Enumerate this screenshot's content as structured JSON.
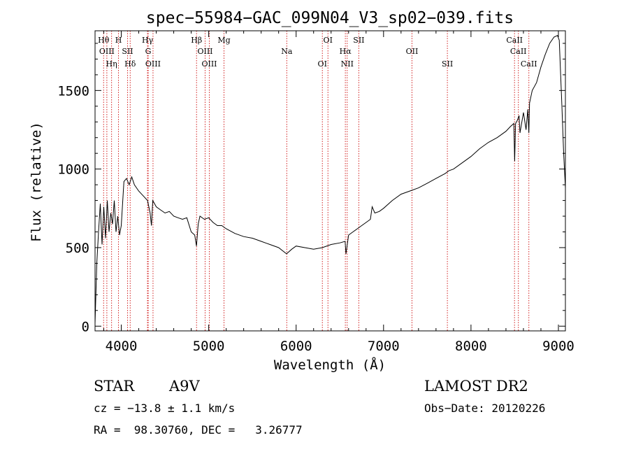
{
  "chart_data": {
    "type": "line",
    "title": "spec−55984−GAC_099N04_V3_sp02−039.fits",
    "xlabel": "Wavelength (Å)",
    "ylabel": "Flux (relative)",
    "xlim": [
      3700,
      9080
    ],
    "ylim": [
      -30,
      1880
    ],
    "xticks": [
      4000,
      5000,
      6000,
      7000,
      8000,
      9000
    ],
    "yticks": [
      0,
      500,
      1000,
      1500
    ],
    "grid": false,
    "series": [
      {
        "color": "#000000",
        "x": [
          3700,
          3720,
          3740,
          3760,
          3780,
          3800,
          3820,
          3840,
          3860,
          3880,
          3900,
          3920,
          3940,
          3960,
          3980,
          4000,
          4030,
          4060,
          4090,
          4120,
          4150,
          4200,
          4250,
          4300,
          4330,
          4345,
          4360,
          4400,
          4450,
          4500,
          4550,
          4600,
          4650,
          4700,
          4750,
          4800,
          4840,
          4860,
          4880,
          4900,
          4950,
          5000,
          5050,
          5100,
          5150,
          5200,
          5300,
          5400,
          5500,
          5600,
          5700,
          5800,
          5890,
          5950,
          6000,
          6100,
          6200,
          6300,
          6400,
          6500,
          6560,
          6570,
          6600,
          6650,
          6700,
          6750,
          6800,
          6850,
          6870,
          6900,
          6950,
          7000,
          7100,
          7200,
          7300,
          7400,
          7500,
          7600,
          7700,
          7750,
          7800,
          7900,
          8000,
          8100,
          8200,
          8300,
          8400,
          8450,
          8490,
          8500,
          8510,
          8530,
          8550,
          8560,
          8600,
          8630,
          8650,
          8662,
          8670,
          8700,
          8750,
          8800,
          8850,
          8900,
          8950,
          8990,
          9010,
          9040,
          9060,
          9080
        ],
        "values": [
          20,
          400,
          600,
          780,
          520,
          760,
          560,
          800,
          600,
          720,
          650,
          800,
          600,
          700,
          580,
          640,
          920,
          940,
          900,
          950,
          900,
          860,
          830,
          800,
          720,
          640,
          800,
          760,
          740,
          720,
          730,
          700,
          690,
          680,
          690,
          600,
          580,
          510,
          650,
          700,
          680,
          690,
          660,
          640,
          640,
          620,
          590,
          570,
          560,
          540,
          520,
          500,
          460,
          490,
          510,
          500,
          490,
          500,
          520,
          530,
          540,
          460,
          580,
          600,
          620,
          640,
          660,
          680,
          760,
          720,
          730,
          750,
          800,
          840,
          860,
          880,
          910,
          940,
          970,
          990,
          1000,
          1040,
          1080,
          1130,
          1170,
          1200,
          1240,
          1270,
          1290,
          1050,
          1290,
          1310,
          1340,
          1230,
          1360,
          1250,
          1380,
          1230,
          1420,
          1500,
          1550,
          1650,
          1730,
          1800,
          1840,
          1850,
          1820,
          1400,
          1100,
          880
        ]
      }
    ],
    "lines": [
      {
        "label": "Hθ",
        "x": 3798,
        "color": "#d22020"
      },
      {
        "label": "OIII",
        "x": 3835,
        "color": "#d22020"
      },
      {
        "label": "Hη",
        "x": 3889,
        "color": "#d22020"
      },
      {
        "label": "H",
        "x": 3968,
        "color": "#d22020"
      },
      {
        "label": "SII",
        "x": 4072,
        "color": "#d22020"
      },
      {
        "label": "Hδ",
        "x": 4102,
        "color": "#d22020"
      },
      {
        "label": "Hγ",
        "x": 4300,
        "color": "#d22020"
      },
      {
        "label": "G",
        "x": 4308,
        "color": "#d22020"
      },
      {
        "label": "OIII",
        "x": 4363,
        "color": "#d22020"
      },
      {
        "label": "Hβ",
        "x": 4861,
        "color": "#d22020"
      },
      {
        "label": "OIII",
        "x": 4959,
        "color": "#d22020"
      },
      {
        "label": "OIII",
        "x": 5007,
        "color": "#d22020"
      },
      {
        "label": "Mg",
        "x": 5175,
        "color": "#d22020"
      },
      {
        "label": "Na",
        "x": 5893,
        "color": "#d22020"
      },
      {
        "label": "OI",
        "x": 6300,
        "color": "#d22020"
      },
      {
        "label": "OI",
        "x": 6364,
        "color": "#d22020"
      },
      {
        "label": "Hα",
        "x": 6563,
        "color": "#d22020"
      },
      {
        "label": "NII",
        "x": 6584,
        "color": "#d22020"
      },
      {
        "label": "SII",
        "x": 6717,
        "color": "#d22020"
      },
      {
        "label": "OII",
        "x": 7325,
        "color": "#d22020"
      },
      {
        "label": "SII",
        "x": 7730,
        "color": "#d22020"
      },
      {
        "label": "CaII",
        "x": 8498,
        "color": "#d22020"
      },
      {
        "label": "CaII",
        "x": 8542,
        "color": "#d22020"
      },
      {
        "label": "CaII",
        "x": 8662,
        "color": "#d22020"
      }
    ]
  },
  "info": {
    "object_class": "STAR",
    "subclass": "A9V",
    "survey": "LAMOST DR2",
    "cz": "cz = −13.8 ± 1.1 km/s",
    "obs_date": "Obs−Date: 20120226",
    "radec": "RA =  98.30760, DEC =   3.26777"
  }
}
